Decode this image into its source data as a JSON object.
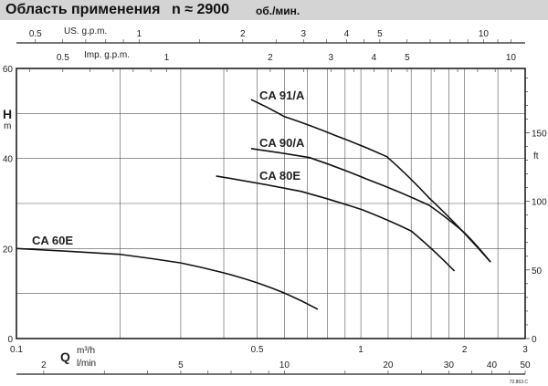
{
  "header": {
    "title": "Область применения",
    "speed": "n ≈ 2900",
    "speed_unit": "об./мин."
  },
  "code": "72.863.C",
  "chart_data": {
    "type": "line",
    "title": "Область применения n ≈ 2900 об./мин.",
    "xlabel": "Q",
    "xunits": [
      "m³/h",
      "l/min"
    ],
    "ylabel": "H",
    "yunit": "m",
    "y2unit": "ft",
    "xscale": "log",
    "xlim": [
      0.1,
      3
    ],
    "ylim": [
      0,
      60
    ],
    "grid": true,
    "x_ticks": [
      0.1,
      0.5,
      1,
      2,
      3
    ],
    "y_ticks": [
      0,
      20,
      40,
      60
    ],
    "y2_ticks": [
      0,
      50,
      100,
      150
    ],
    "top_axes": [
      {
        "label": "US. g.p.m.",
        "ticks": [
          0.5,
          1,
          2,
          3,
          4,
          5,
          10
        ]
      },
      {
        "label": "Imp. g.p.m.",
        "ticks": [
          0.5,
          1,
          2,
          3,
          4,
          5,
          10
        ]
      }
    ],
    "bottom_axis_lmin": {
      "label": "l/min",
      "ticks": [
        2,
        5,
        10,
        20,
        30,
        40,
        50
      ]
    },
    "series": [
      {
        "name": "CA 91/A",
        "points": [
          [
            0.48,
            53.1
          ],
          [
            0.6,
            49.3
          ],
          [
            0.85,
            45
          ],
          [
            1.19,
            40.4
          ],
          [
            1.58,
            31.2
          ],
          [
            2.38,
            17.0
          ]
        ]
      },
      {
        "name": "CA 90/A",
        "points": [
          [
            0.48,
            42.2
          ],
          [
            0.71,
            40.2
          ],
          [
            1.05,
            35.3
          ],
          [
            1.58,
            29.6
          ],
          [
            2.0,
            23.5
          ],
          [
            2.38,
            17.0
          ]
        ]
      },
      {
        "name": "CA 80E",
        "points": [
          [
            0.38,
            36.1
          ],
          [
            0.67,
            32.7
          ],
          [
            1.01,
            28.6
          ],
          [
            1.4,
            23.9
          ],
          [
            1.87,
            15.0
          ]
        ]
      },
      {
        "name": "CA 60E",
        "points": [
          [
            0.1,
            20.0
          ],
          [
            0.2,
            18.7
          ],
          [
            0.3,
            16.8
          ],
          [
            0.4,
            14.6
          ],
          [
            0.5,
            12.4
          ],
          [
            0.6,
            10.1
          ],
          [
            0.75,
            6.5
          ]
        ]
      }
    ]
  }
}
